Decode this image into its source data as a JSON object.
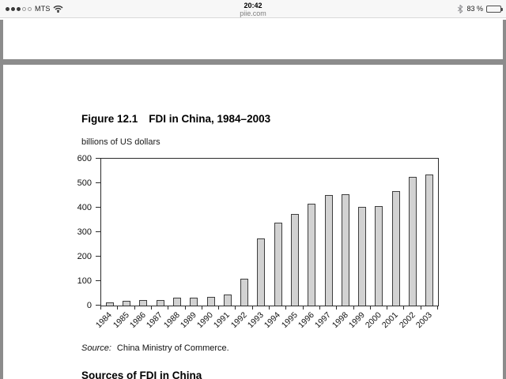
{
  "status_bar": {
    "carrier": "MTS",
    "signal_filled": 3,
    "signal_total": 5,
    "time": "20:42",
    "site": "piie.com",
    "battery_text": "83 %",
    "battery_level": 0.83
  },
  "figure": {
    "label": "Figure 12.1",
    "title": "FDI in China, 1984–2003",
    "units_label": "billions of US dollars",
    "source_prefix": "Source:",
    "source_text": "China Ministry of Commerce."
  },
  "next_section_heading": "Sources of FDI in China",
  "chart_data": {
    "type": "bar",
    "title": "Figure 12.1  FDI in China, 1984–2003",
    "ylabel": "billions of US dollars",
    "xlabel": "",
    "categories": [
      "1984",
      "1985",
      "1986",
      "1987",
      "1988",
      "1989",
      "1990",
      "1991",
      "1992",
      "1993",
      "1994",
      "1995",
      "1996",
      "1997",
      "1998",
      "1999",
      "2000",
      "2001",
      "2002",
      "2003"
    ],
    "values": [
      13,
      20,
      22,
      23,
      32,
      34,
      35,
      44,
      110,
      275,
      338,
      375,
      417,
      453,
      455,
      403,
      407,
      469,
      527,
      535
    ],
    "ylim": [
      0,
      600
    ],
    "yticks": [
      0,
      100,
      200,
      300,
      400,
      500,
      600
    ],
    "grid": false,
    "legend": "none",
    "bar_fill": "#d2d2d2",
    "bar_border": "#3e3e3e",
    "source": "China Ministry of Commerce."
  },
  "colors": {
    "page_background": "#8c8c8c",
    "page": "#ffffff",
    "status_bar": "#f7f7f7",
    "text": "#000000",
    "muted_text": "#7e7e7e"
  }
}
